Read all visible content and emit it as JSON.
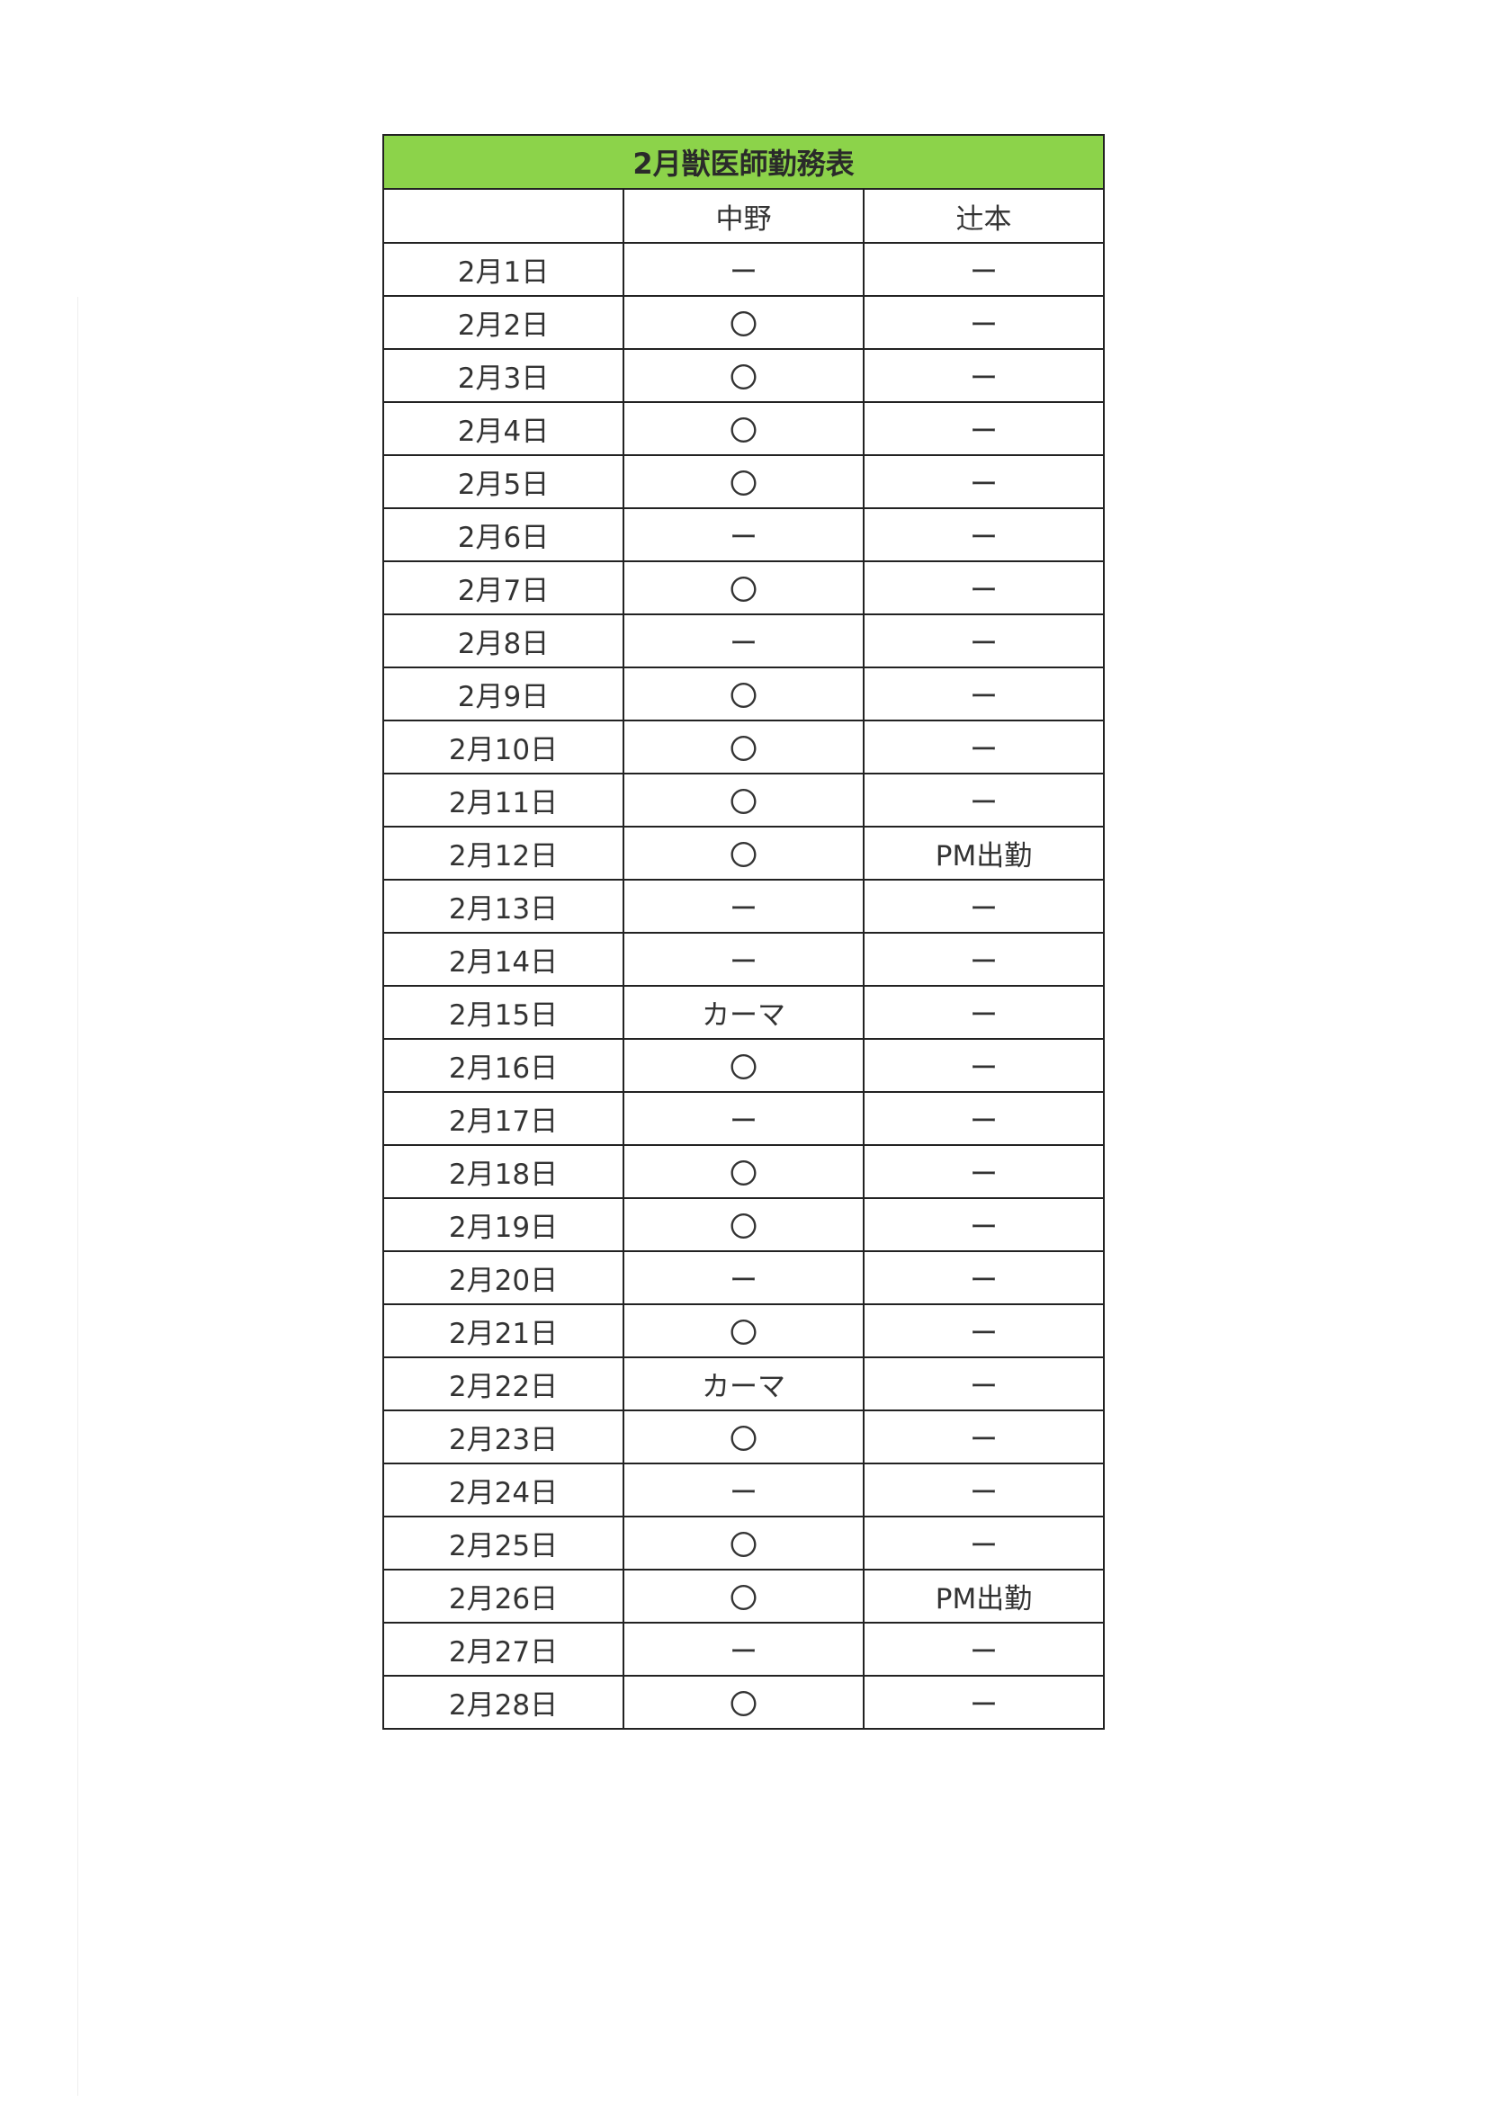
{
  "title": "2月獣医師勤務表",
  "columns": [
    "",
    "中野",
    "辻本"
  ],
  "rows": [
    {
      "date": "2月1日",
      "nakano": "ー",
      "tsujimoto": "ー"
    },
    {
      "date": "2月2日",
      "nakano": "〇",
      "tsujimoto": "ー"
    },
    {
      "date": "2月3日",
      "nakano": "〇",
      "tsujimoto": "ー"
    },
    {
      "date": "2月4日",
      "nakano": "〇",
      "tsujimoto": "ー"
    },
    {
      "date": "2月5日",
      "nakano": "〇",
      "tsujimoto": "ー"
    },
    {
      "date": "2月6日",
      "nakano": "ー",
      "tsujimoto": "ー"
    },
    {
      "date": "2月7日",
      "nakano": "〇",
      "tsujimoto": "ー"
    },
    {
      "date": "2月8日",
      "nakano": "ー",
      "tsujimoto": "ー"
    },
    {
      "date": "2月9日",
      "nakano": "〇",
      "tsujimoto": "ー"
    },
    {
      "date": "2月10日",
      "nakano": "〇",
      "tsujimoto": "ー"
    },
    {
      "date": "2月11日",
      "nakano": "〇",
      "tsujimoto": "ー"
    },
    {
      "date": "2月12日",
      "nakano": "〇",
      "tsujimoto": "PM出勤"
    },
    {
      "date": "2月13日",
      "nakano": "ー",
      "tsujimoto": "ー"
    },
    {
      "date": "2月14日",
      "nakano": "ー",
      "tsujimoto": "ー"
    },
    {
      "date": "2月15日",
      "nakano": "カーマ",
      "tsujimoto": "ー"
    },
    {
      "date": "2月16日",
      "nakano": "〇",
      "tsujimoto": "ー"
    },
    {
      "date": "2月17日",
      "nakano": "ー",
      "tsujimoto": "ー"
    },
    {
      "date": "2月18日",
      "nakano": "〇",
      "tsujimoto": "ー"
    },
    {
      "date": "2月19日",
      "nakano": "〇",
      "tsujimoto": "ー"
    },
    {
      "date": "2月20日",
      "nakano": "ー",
      "tsujimoto": "ー"
    },
    {
      "date": "2月21日",
      "nakano": "〇",
      "tsujimoto": "ー"
    },
    {
      "date": "2月22日",
      "nakano": "カーマ",
      "tsujimoto": "ー"
    },
    {
      "date": "2月23日",
      "nakano": "〇",
      "tsujimoto": "ー"
    },
    {
      "date": "2月24日",
      "nakano": "ー",
      "tsujimoto": "ー"
    },
    {
      "date": "2月25日",
      "nakano": "〇",
      "tsujimoto": "ー"
    },
    {
      "date": "2月26日",
      "nakano": "〇",
      "tsujimoto": "PM出勤"
    },
    {
      "date": "2月27日",
      "nakano": "ー",
      "tsujimoto": "ー"
    },
    {
      "date": "2月28日",
      "nakano": "〇",
      "tsujimoto": "ー"
    }
  ],
  "colors": {
    "title_bg": "#8cd34a",
    "border": "#222222"
  }
}
